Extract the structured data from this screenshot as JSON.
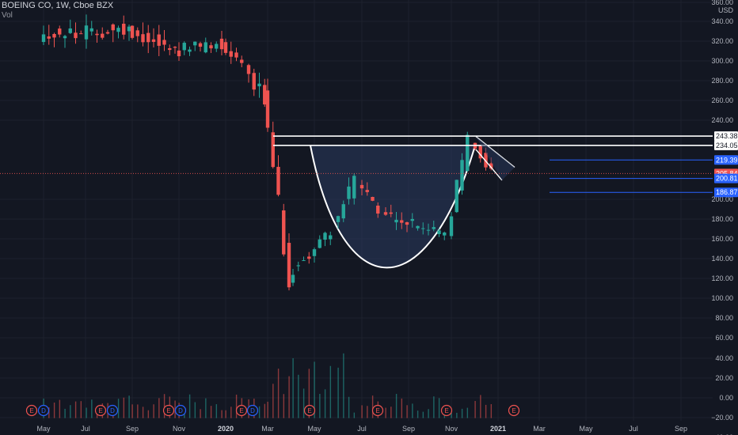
{
  "header": {
    "symbol_line": "BOEING CO, 1W, Cboe BZX",
    "indicator": "Vol"
  },
  "axis": {
    "unit": "USD",
    "ticks": [
      "360.00",
      "340.00",
      "320.00",
      "300.00",
      "280.00",
      "260.00",
      "240.00",
      "200.00",
      "180.00",
      "160.00",
      "140.00",
      "120.00",
      "100.00",
      "80.00",
      "60.00",
      "40.00",
      "20.00",
      "0.00",
      "−20.00",
      "−40.00"
    ]
  },
  "time_labels": [
    "May",
    "Jul",
    "Sep",
    "Nov",
    "2020",
    "Mar",
    "May",
    "Jul",
    "Sep",
    "Nov",
    "2021",
    "Mar",
    "May",
    "Jul",
    "Sep"
  ],
  "price_labels": [
    {
      "text": "243.38",
      "value": 243.38,
      "style": "white"
    },
    {
      "text": "234.05",
      "value": 234.05,
      "style": "white"
    },
    {
      "text": "219.39",
      "value": 219.39,
      "style": "blue"
    },
    {
      "text": "205.84",
      "value": 205.84,
      "style": "red"
    },
    {
      "text": "200.81",
      "value": 200.81,
      "style": "blue"
    },
    {
      "text": "186.87",
      "value": 186.87,
      "style": "blue"
    }
  ],
  "event_markers": [
    {
      "x": 40,
      "letter": "E"
    },
    {
      "x": 55,
      "letter": "D"
    },
    {
      "x": 127,
      "letter": "E"
    },
    {
      "x": 142,
      "letter": "D"
    },
    {
      "x": 213,
      "letter": "E"
    },
    {
      "x": 228,
      "letter": "D"
    },
    {
      "x": 305,
      "letter": "E"
    },
    {
      "x": 319,
      "letter": "D"
    },
    {
      "x": 391,
      "letter": "E"
    },
    {
      "x": 477,
      "letter": "E"
    },
    {
      "x": 564,
      "letter": "E"
    },
    {
      "x": 649,
      "letter": "E"
    }
  ],
  "colors": {
    "background": "#131722",
    "up": "#26a69a",
    "down": "#ef5350",
    "grid": "#1e222d",
    "pattern_fill": "#2a3a5e",
    "blue_label": "#2962ff"
  },
  "chart_data": {
    "type": "candlestick",
    "title": "BOEING CO, 1W, Cboe BZX",
    "ylabel": "USD",
    "ylim": [
      -45,
      380
    ],
    "grid": true,
    "segments": [
      {
        "from": "2019-05",
        "to": "2019-09",
        "open": 345,
        "close": 350,
        "volatility": 14,
        "wick": 12
      },
      {
        "from": "2019-09",
        "to": "2019-11",
        "open": 350,
        "close": 330,
        "volatility": 14,
        "wick": 12
      },
      {
        "from": "2019-11",
        "to": "2020-01",
        "open": 330,
        "close": 335,
        "volatility": 14,
        "wick": 12
      },
      {
        "from": "2020-01",
        "to": "2020-02",
        "open": 335,
        "close": 318,
        "volatility": 10,
        "wick": 10
      },
      {
        "from": "2020-02",
        "to": "2020-03",
        "open": 318,
        "close": 280,
        "volatility": 18,
        "wick": 12
      },
      {
        "from": "2020-03",
        "to": "2020-04",
        "open": 280,
        "close": 100,
        "volatility": 25,
        "wick": 12
      },
      {
        "from": "2020-04",
        "to": "2020-06",
        "open": 100,
        "close": 150,
        "volatility": 14,
        "wick": 8
      },
      {
        "from": "2020-06",
        "to": "2020-07",
        "open": 150,
        "close": 200,
        "volatility": 15,
        "wick": 10
      },
      {
        "from": "2020-07",
        "to": "2020-08",
        "open": 200,
        "close": 165,
        "volatility": 12,
        "wick": 8
      },
      {
        "from": "2020-08",
        "to": "2020-11",
        "open": 165,
        "close": 145,
        "volatility": 12,
        "wick": 8
      },
      {
        "from": "2020-11",
        "to": "2020-12",
        "open": 145,
        "close": 240,
        "volatility": 16,
        "wick": 8
      },
      {
        "from": "2020-12",
        "to": "2021-01",
        "open": 240,
        "close": 208,
        "volatility": 10,
        "wick": 6
      }
    ],
    "volume": {
      "typical_range": [
        5,
        25
      ],
      "max": 65,
      "peak_period": "2020-06"
    },
    "annotations": {
      "resistance_levels": [
        243.38,
        234.05
      ],
      "cup_pattern": {
        "start": "2020-04",
        "end": "2020-12",
        "rim": 234,
        "bottom": 118
      },
      "handle": {
        "start": "2020-12",
        "end": "2021-01",
        "upper": [
          243,
          212
        ],
        "lower": [
          230,
          199
        ]
      },
      "target_lines": [
        219.39,
        200.81,
        186.87
      ]
    }
  }
}
